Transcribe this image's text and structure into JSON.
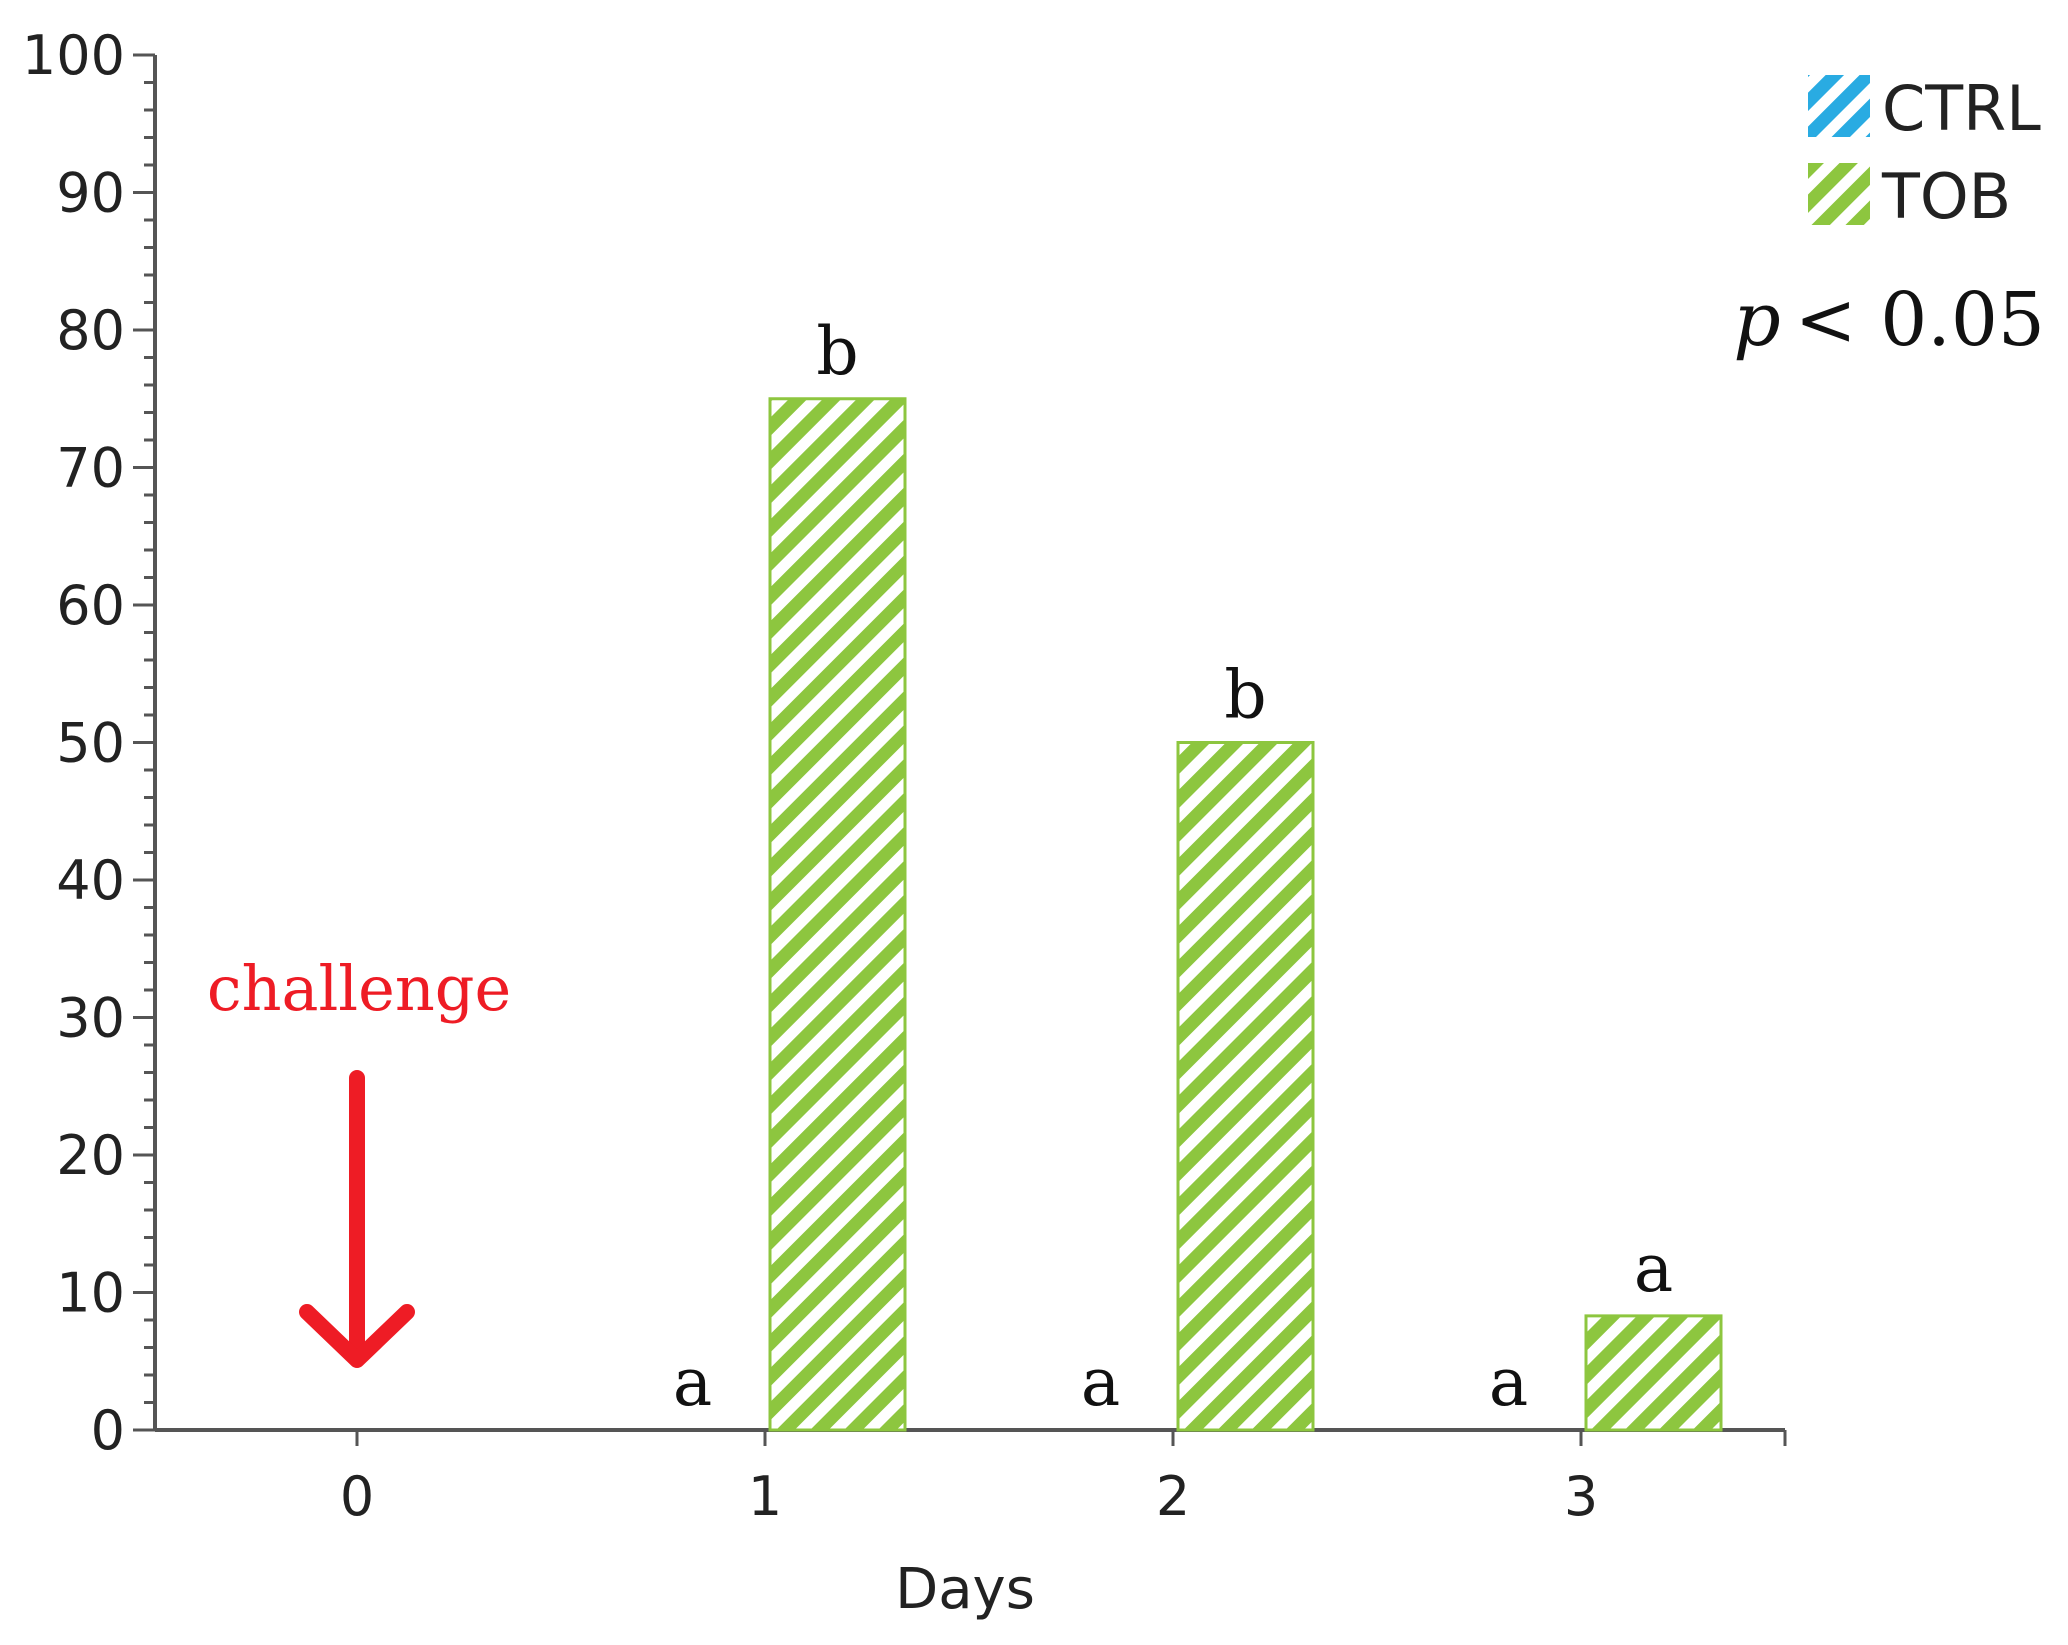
{
  "chart_data": {
    "type": "bar",
    "categories": [
      "0",
      "1",
      "2",
      "3"
    ],
    "series": [
      {
        "name": "CTRL",
        "values": [
          0,
          0,
          0,
          0
        ],
        "letters": [
          "",
          "a",
          "a",
          "a"
        ]
      },
      {
        "name": "TOB",
        "values": [
          0,
          75,
          50,
          8.3
        ],
        "letters": [
          "",
          "b",
          "b",
          "a"
        ]
      }
    ],
    "title": "",
    "xlabel": "Days",
    "ylabel": "",
    "ylim": [
      0,
      100
    ],
    "yticks": [
      0,
      10,
      20,
      30,
      40,
      50,
      60,
      70,
      80,
      90,
      100
    ],
    "legend_position": "top-right",
    "grid": false,
    "pvalue": {
      "symbol": "p",
      "text": "< 0.05"
    },
    "annotation": {
      "text": "challenge",
      "category": "0",
      "color": "#ee1c25"
    },
    "colors": {
      "CTRL": "#29abe2",
      "TOB": "#8dc63f",
      "axis": "#555555"
    }
  }
}
